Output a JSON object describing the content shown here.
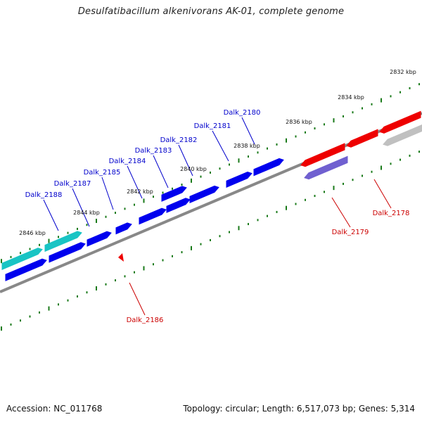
{
  "title": "Desulfatibacillum alkenivorans AK-01, complete genome",
  "footer": {
    "accession": "Accession: NC_011768",
    "summary": "Topology: circular; Length: 6,517,073 bp; Genes: 5,314"
  },
  "colors": {
    "backbone": "#888888",
    "tick": "#1a7a1a",
    "forward_gene": "#0000ee",
    "forward_alt": "#19c4c4",
    "reverse_gene": "#ee0000",
    "reverse_alt": "#7060d0",
    "reverse_grey": "#c0c0c0",
    "label_forward": "#0000cc",
    "label_reverse": "#cc0000"
  },
  "scale_labels": [
    "2832 kbp",
    "2834 kbp",
    "2836 kbp",
    "2838 kbp",
    "2840 kbp",
    "2842 kbp",
    "2844 kbp",
    "2846 kbp"
  ],
  "gene_labels": {
    "forward": [
      "Dalk_2180",
      "Dalk_2181",
      "Dalk_2182",
      "Dalk_2183",
      "Dalk_2184",
      "Dalk_2185",
      "Dalk_2187",
      "Dalk_2188"
    ],
    "reverse": [
      "Dalk_2178",
      "Dalk_2179",
      "Dalk_2186"
    ]
  }
}
